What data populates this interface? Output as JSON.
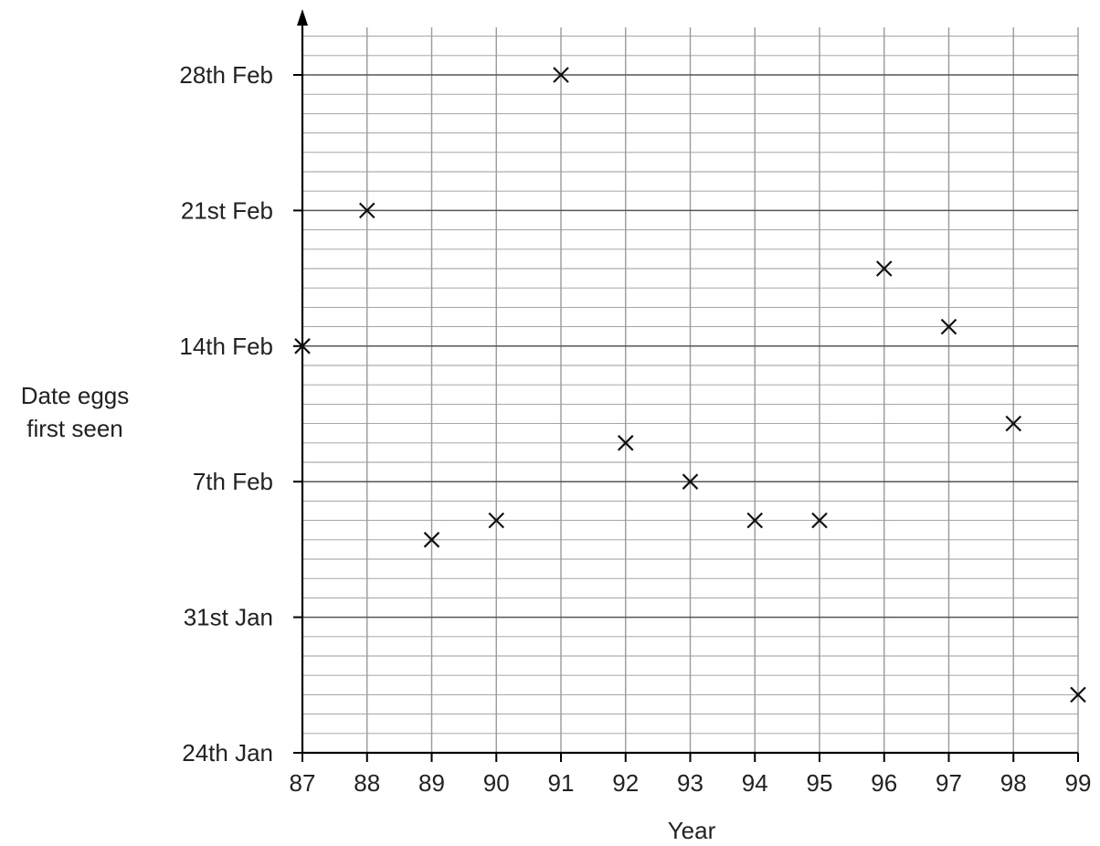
{
  "chart_data": {
    "type": "scatter",
    "xlabel": "Year",
    "ylabel_lines": [
      "Date eggs",
      "first seen"
    ],
    "x_ticks": [
      "87",
      "88",
      "89",
      "90",
      "91",
      "92",
      "93",
      "94",
      "95",
      "96",
      "97",
      "98",
      "99"
    ],
    "y_ticks": [
      "24th Jan",
      "31st Jan",
      "7th Feb",
      "14th Feb",
      "21st Feb",
      "28th Feb"
    ],
    "xlim": [
      87,
      99
    ],
    "ylim": [
      "24th Jan",
      "2nd Mar"
    ],
    "grid": true,
    "marker": "x",
    "points": [
      {
        "x": 87,
        "y": "14th Feb"
      },
      {
        "x": 88,
        "y": "21st Feb"
      },
      {
        "x": 89,
        "y": "4th Feb"
      },
      {
        "x": 90,
        "y": "5th Feb"
      },
      {
        "x": 91,
        "y": "28th Feb"
      },
      {
        "x": 92,
        "y": "9th Feb"
      },
      {
        "x": 93,
        "y": "7th Feb"
      },
      {
        "x": 94,
        "y": "5th Feb"
      },
      {
        "x": 95,
        "y": "5th Feb"
      },
      {
        "x": 96,
        "y": "18th Feb"
      },
      {
        "x": 97,
        "y": "15th Feb"
      },
      {
        "x": 98,
        "y": "10th Feb"
      },
      {
        "x": 99,
        "y": "27th Jan"
      }
    ]
  }
}
